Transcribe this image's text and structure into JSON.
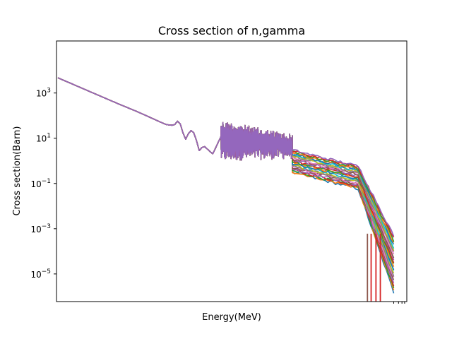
{
  "chart_data": {
    "type": "line",
    "title": "Cross section of n,gamma",
    "xlabel": "Energy(MeV)",
    "ylabel": "Cross section(Barn)",
    "xscale": "log",
    "yscale": "log",
    "ylim": [
      6e-07,
      200000.0
    ],
    "y_ticks": [
      {
        "value": 1e-05,
        "base": "10",
        "exp": "−5"
      },
      {
        "value": 0.001,
        "base": "10",
        "exp": "−3"
      },
      {
        "value": 0.1,
        "base": "10",
        "exp": "−1"
      },
      {
        "value": 10,
        "base": "10",
        "exp": "1"
      },
      {
        "value": 1000,
        "base": "10",
        "exp": "3"
      }
    ],
    "grid": false,
    "legend": "none",
    "series_count": 25,
    "series_colors": [
      "#1f77b4",
      "#ff7f0e",
      "#2ca02c",
      "#d62728",
      "#9467bd",
      "#8c564b",
      "#e377c2",
      "#7f7f7f",
      "#bcbd22",
      "#17becf"
    ],
    "common_curve": [
      {
        "x": 1e-11,
        "y": 5000
      },
      {
        "x": 1e-10,
        "y": 1500
      },
      {
        "x": 1e-09,
        "y": 450
      },
      {
        "x": 1e-08,
        "y": 140
      },
      {
        "x": 1e-07,
        "y": 40
      },
      {
        "x": 3e-07,
        "y": 35
      },
      {
        "x": 1e-06,
        "y": 12
      },
      {
        "x": 5e-06,
        "y": 2
      },
      {
        "x": 1e-05,
        "y": 12
      }
    ],
    "resonance_region": {
      "x_start": 1e-05,
      "x_end": 0.004,
      "y_min": 1,
      "y_max": 60
    },
    "fast_region": {
      "x_start": 0.004,
      "x_end": 20,
      "y_at_start": [
        0.3,
        3
      ],
      "y_at_end": [
        1.5e-06,
        0.0005
      ]
    }
  }
}
